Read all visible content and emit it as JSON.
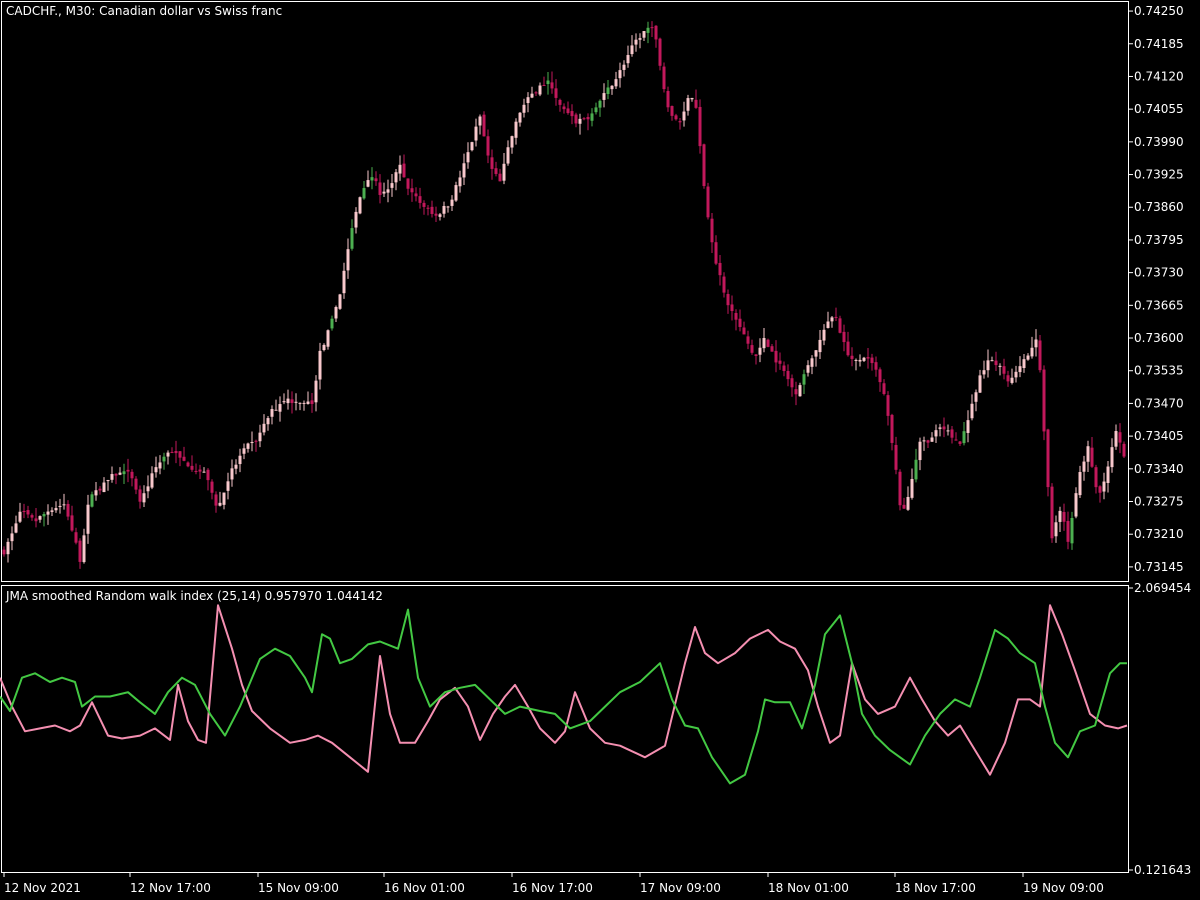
{
  "window": {
    "symbol_label": "CADCHF., M30:  Canadian dollar vs Swiss franc",
    "indicator_label": "JMA smoothed Random walk index (25,14) 0.957970 1.044142"
  },
  "colors": {
    "background": "#000000",
    "frame": "#ffffff",
    "text": "#ffffff",
    "candle_down": "#c2185b",
    "candle_up": "#f8c8cc",
    "candle_up_alt": "#4caf50",
    "rwi_high": "#f48fb1",
    "rwi_low": "#43c843"
  },
  "chart_data": [
    {
      "type": "candlestick",
      "title": "CADCHF., M30:  Canadian dollar vs Swiss franc",
      "ylim": [
        0.73113,
        0.74272
      ],
      "yticks": [
        "0.74250",
        "0.74185",
        "0.74120",
        "0.74055",
        "0.73990",
        "0.73925",
        "0.73860",
        "0.73795",
        "0.73730",
        "0.73665",
        "0.73600",
        "0.73535",
        "0.73470",
        "0.73405",
        "0.73340",
        "0.73275",
        "0.73210",
        "0.73145"
      ],
      "xticks": [
        "12 Nov 2021",
        "12 Nov 17:00",
        "15 Nov 09:00",
        "16 Nov 01:00",
        "16 Nov 17:00",
        "17 Nov 09:00",
        "18 Nov 01:00",
        "18 Nov 17:00",
        "19 Nov 09:00"
      ],
      "close_path": [
        [
          0,
          0.7316
        ],
        [
          10,
          0.732
        ],
        [
          20,
          0.73255
        ],
        [
          35,
          0.73235
        ],
        [
          50,
          0.7326
        ],
        [
          65,
          0.7327
        ],
        [
          80,
          0.7316
        ],
        [
          90,
          0.7329
        ],
        [
          100,
          0.733
        ],
        [
          115,
          0.7333
        ],
        [
          130,
          0.7333
        ],
        [
          140,
          0.7327
        ],
        [
          155,
          0.7334
        ],
        [
          170,
          0.7338
        ],
        [
          180,
          0.7336
        ],
        [
          195,
          0.7334
        ],
        [
          205,
          0.7333
        ],
        [
          218,
          0.7326
        ],
        [
          230,
          0.7333
        ],
        [
          245,
          0.7338
        ],
        [
          258,
          0.734
        ],
        [
          270,
          0.7345
        ],
        [
          285,
          0.7348
        ],
        [
          300,
          0.7347
        ],
        [
          312,
          0.7347
        ],
        [
          320,
          0.7357
        ],
        [
          330,
          0.7362
        ],
        [
          340,
          0.7369
        ],
        [
          350,
          0.738
        ],
        [
          360,
          0.7388
        ],
        [
          370,
          0.7393
        ],
        [
          380,
          0.7389
        ],
        [
          390,
          0.739
        ],
        [
          400,
          0.7394
        ],
        [
          410,
          0.7389
        ],
        [
          420,
          0.7387
        ],
        [
          435,
          0.7384
        ],
        [
          450,
          0.7387
        ],
        [
          460,
          0.7392
        ],
        [
          470,
          0.7398
        ],
        [
          480,
          0.7404
        ],
        [
          490,
          0.7394
        ],
        [
          500,
          0.7391
        ],
        [
          510,
          0.7399
        ],
        [
          520,
          0.7405
        ],
        [
          530,
          0.7408
        ],
        [
          540,
          0.741
        ],
        [
          550,
          0.7411
        ],
        [
          560,
          0.7406
        ],
        [
          575,
          0.7403
        ],
        [
          590,
          0.7404
        ],
        [
          600,
          0.7407
        ],
        [
          610,
          0.741
        ],
        [
          620,
          0.7413
        ],
        [
          630,
          0.7417
        ],
        [
          640,
          0.742
        ],
        [
          650,
          0.7422
        ],
        [
          655,
          0.742
        ],
        [
          662,
          0.7412
        ],
        [
          670,
          0.7404
        ],
        [
          680,
          0.7403
        ],
        [
          690,
          0.7409
        ],
        [
          697,
          0.7405
        ],
        [
          705,
          0.7388
        ],
        [
          715,
          0.7376
        ],
        [
          725,
          0.7368
        ],
        [
          735,
          0.7364
        ],
        [
          745,
          0.736
        ],
        [
          755,
          0.7356
        ],
        [
          765,
          0.736
        ],
        [
          775,
          0.7356
        ],
        [
          785,
          0.7353
        ],
        [
          795,
          0.7349
        ],
        [
          805,
          0.7353
        ],
        [
          815,
          0.7357
        ],
        [
          825,
          0.7362
        ],
        [
          835,
          0.7365
        ],
        [
          845,
          0.7358
        ],
        [
          855,
          0.7355
        ],
        [
          865,
          0.7356
        ],
        [
          875,
          0.7354
        ],
        [
          885,
          0.7348
        ],
        [
          895,
          0.7335
        ],
        [
          902,
          0.7324
        ],
        [
          910,
          0.733
        ],
        [
          920,
          0.7339
        ],
        [
          930,
          0.734
        ],
        [
          940,
          0.7342
        ],
        [
          950,
          0.7341
        ],
        [
          960,
          0.7339
        ],
        [
          970,
          0.7345
        ],
        [
          980,
          0.7352
        ],
        [
          990,
          0.7356
        ],
        [
          1000,
          0.7354
        ],
        [
          1010,
          0.7351
        ],
        [
          1020,
          0.7355
        ],
        [
          1030,
          0.7357
        ],
        [
          1038,
          0.736
        ],
        [
          1045,
          0.7338
        ],
        [
          1052,
          0.732
        ],
        [
          1060,
          0.7326
        ],
        [
          1068,
          0.732
        ],
        [
          1078,
          0.7332
        ],
        [
          1088,
          0.7338
        ],
        [
          1098,
          0.7328
        ],
        [
          1108,
          0.7334
        ],
        [
          1115,
          0.7342
        ],
        [
          1127,
          0.7334
        ]
      ]
    },
    {
      "type": "line",
      "title": "JMA smoothed Random walk index (25,14) 0.957970 1.044142",
      "ylim": [
        0.121643,
        2.069454
      ],
      "yticks": [
        "2.069454",
        "0.121643"
      ],
      "series": [
        {
          "values": [
            [
              0,
              1.45
            ],
            [
              12,
              1.25
            ],
            [
              25,
              1.08
            ],
            [
              40,
              1.1
            ],
            [
              55,
              1.12
            ],
            [
              70,
              1.08
            ],
            [
              80,
              1.12
            ],
            [
              92,
              1.28
            ],
            [
              108,
              1.05
            ],
            [
              122,
              1.03
            ],
            [
              140,
              1.05
            ],
            [
              155,
              1.1
            ],
            [
              170,
              1.02
            ],
            [
              178,
              1.4
            ],
            [
              188,
              1.15
            ],
            [
              198,
              1.02
            ],
            [
              206,
              1.0
            ],
            [
              218,
              1.95
            ],
            [
              232,
              1.65
            ],
            [
              242,
              1.4
            ],
            [
              252,
              1.22
            ],
            [
              270,
              1.1
            ],
            [
              290,
              1.0
            ],
            [
              305,
              1.02
            ],
            [
              318,
              1.05
            ],
            [
              332,
              1.0
            ],
            [
              350,
              0.9
            ],
            [
              368,
              0.8
            ],
            [
              380,
              1.6
            ],
            [
              390,
              1.2
            ],
            [
              400,
              1.0
            ],
            [
              415,
              1.0
            ],
            [
              428,
              1.15
            ],
            [
              440,
              1.3
            ],
            [
              455,
              1.38
            ],
            [
              468,
              1.25
            ],
            [
              480,
              1.02
            ],
            [
              493,
              1.2
            ],
            [
              505,
              1.32
            ],
            [
              515,
              1.4
            ],
            [
              528,
              1.25
            ],
            [
              540,
              1.1
            ],
            [
              555,
              1.0
            ],
            [
              565,
              1.08
            ],
            [
              575,
              1.35
            ],
            [
              590,
              1.1
            ],
            [
              605,
              1.0
            ],
            [
              620,
              0.98
            ],
            [
              645,
              0.9
            ],
            [
              665,
              0.98
            ],
            [
              685,
              1.55
            ],
            [
              695,
              1.8
            ],
            [
              705,
              1.62
            ],
            [
              718,
              1.55
            ],
            [
              735,
              1.62
            ],
            [
              750,
              1.72
            ],
            [
              768,
              1.78
            ],
            [
              780,
              1.7
            ],
            [
              795,
              1.65
            ],
            [
              808,
              1.5
            ],
            [
              818,
              1.25
            ],
            [
              830,
              1.0
            ],
            [
              840,
              1.05
            ],
            [
              852,
              1.55
            ],
            [
              865,
              1.3
            ],
            [
              878,
              1.2
            ],
            [
              895,
              1.25
            ],
            [
              910,
              1.45
            ],
            [
              922,
              1.3
            ],
            [
              935,
              1.15
            ],
            [
              948,
              1.05
            ],
            [
              960,
              1.12
            ],
            [
              975,
              0.95
            ],
            [
              990,
              0.78
            ],
            [
              1005,
              1.0
            ],
            [
              1018,
              1.3
            ],
            [
              1030,
              1.3
            ],
            [
              1040,
              1.25
            ],
            [
              1050,
              1.95
            ],
            [
              1062,
              1.75
            ],
            [
              1075,
              1.5
            ],
            [
              1090,
              1.2
            ],
            [
              1105,
              1.12
            ],
            [
              1118,
              1.1
            ],
            [
              1127,
              1.12
            ]
          ]
        },
        {
          "values": [
            [
              0,
              1.32
            ],
            [
              10,
              1.22
            ],
            [
              22,
              1.45
            ],
            [
              35,
              1.48
            ],
            [
              50,
              1.42
            ],
            [
              62,
              1.45
            ],
            [
              75,
              1.42
            ],
            [
              82,
              1.25
            ],
            [
              95,
              1.32
            ],
            [
              110,
              1.32
            ],
            [
              128,
              1.35
            ],
            [
              140,
              1.28
            ],
            [
              155,
              1.2
            ],
            [
              168,
              1.35
            ],
            [
              182,
              1.45
            ],
            [
              195,
              1.4
            ],
            [
              210,
              1.2
            ],
            [
              225,
              1.05
            ],
            [
              240,
              1.25
            ],
            [
              260,
              1.58
            ],
            [
              275,
              1.65
            ],
            [
              290,
              1.6
            ],
            [
              305,
              1.45
            ],
            [
              312,
              1.35
            ],
            [
              322,
              1.75
            ],
            [
              330,
              1.72
            ],
            [
              340,
              1.55
            ],
            [
              352,
              1.58
            ],
            [
              368,
              1.68
            ],
            [
              380,
              1.7
            ],
            [
              398,
              1.65
            ],
            [
              408,
              1.92
            ],
            [
              418,
              1.45
            ],
            [
              430,
              1.25
            ],
            [
              445,
              1.35
            ],
            [
              460,
              1.38
            ],
            [
              475,
              1.4
            ],
            [
              490,
              1.3
            ],
            [
              505,
              1.2
            ],
            [
              520,
              1.25
            ],
            [
              540,
              1.22
            ],
            [
              555,
              1.2
            ],
            [
              570,
              1.1
            ],
            [
              590,
              1.15
            ],
            [
              605,
              1.25
            ],
            [
              620,
              1.35
            ],
            [
              640,
              1.42
            ],
            [
              660,
              1.55
            ],
            [
              672,
              1.3
            ],
            [
              685,
              1.12
            ],
            [
              698,
              1.1
            ],
            [
              712,
              0.9
            ],
            [
              730,
              0.72
            ],
            [
              745,
              0.78
            ],
            [
              758,
              1.08
            ],
            [
              765,
              1.3
            ],
            [
              775,
              1.28
            ],
            [
              790,
              1.28
            ],
            [
              802,
              1.1
            ],
            [
              815,
              1.4
            ],
            [
              825,
              1.75
            ],
            [
              840,
              1.88
            ],
            [
              852,
              1.55
            ],
            [
              862,
              1.2
            ],
            [
              875,
              1.05
            ],
            [
              890,
              0.95
            ],
            [
              910,
              0.85
            ],
            [
              925,
              1.05
            ],
            [
              940,
              1.2
            ],
            [
              955,
              1.3
            ],
            [
              970,
              1.25
            ],
            [
              980,
              1.45
            ],
            [
              995,
              1.78
            ],
            [
              1008,
              1.72
            ],
            [
              1020,
              1.62
            ],
            [
              1035,
              1.55
            ],
            [
              1045,
              1.25
            ],
            [
              1055,
              1.0
            ],
            [
              1068,
              0.9
            ],
            [
              1080,
              1.08
            ],
            [
              1095,
              1.12
            ],
            [
              1110,
              1.48
            ],
            [
              1120,
              1.55
            ],
            [
              1127,
              1.55
            ]
          ]
        }
      ]
    }
  ]
}
